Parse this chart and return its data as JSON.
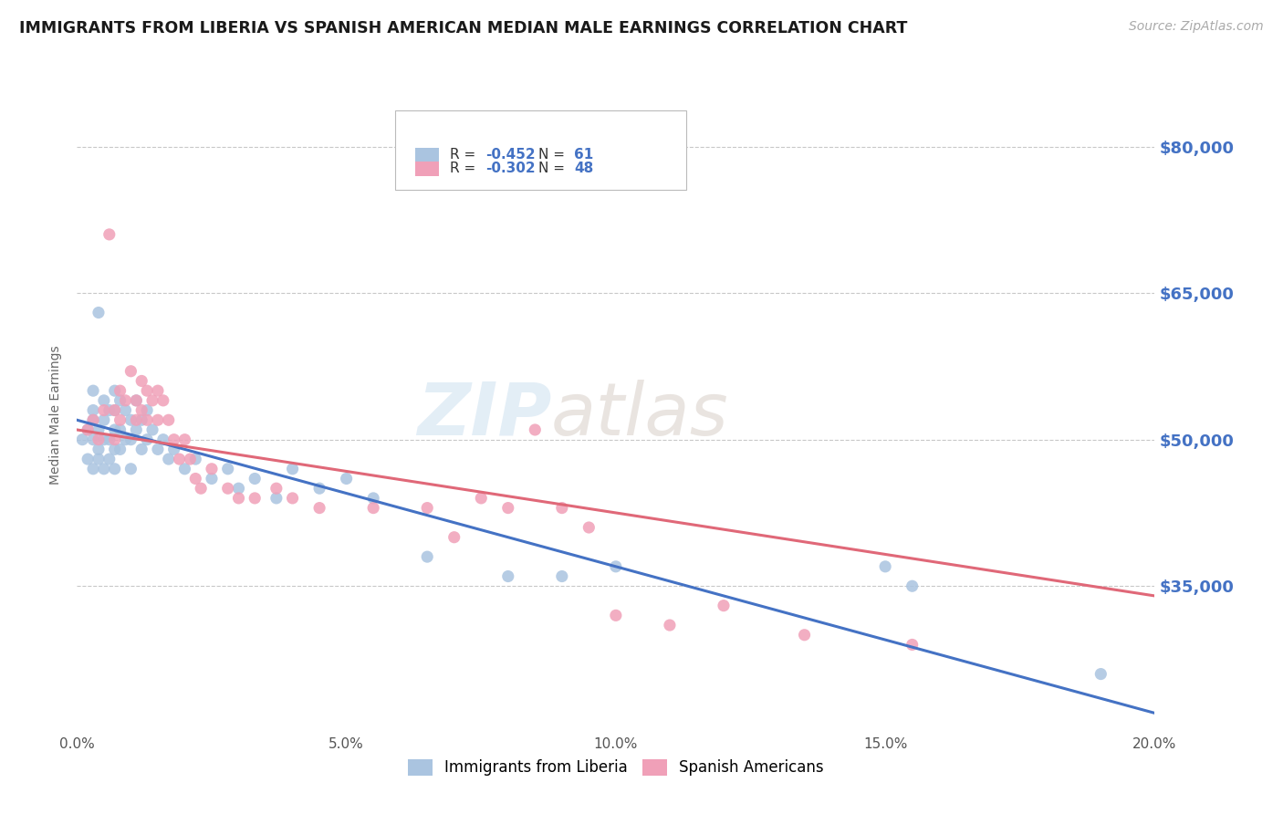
{
  "title": "IMMIGRANTS FROM LIBERIA VS SPANISH AMERICAN MEDIAN MALE EARNINGS CORRELATION CHART",
  "source": "Source: ZipAtlas.com",
  "ylabel_label": "Median Male Earnings",
  "x_min": 0.0,
  "x_max": 0.2,
  "y_min": 20000,
  "y_max": 85000,
  "yticks": [
    35000,
    50000,
    65000,
    80000
  ],
  "ytick_labels": [
    "$35,000",
    "$50,000",
    "$65,000",
    "$80,000"
  ],
  "xticks": [
    0.0,
    0.05,
    0.1,
    0.15,
    0.2
  ],
  "xtick_labels": [
    "0.0%",
    "5.0%",
    "10.0%",
    "15.0%",
    "20.0%"
  ],
  "blue_color": "#aac4e0",
  "pink_color": "#f0a0b8",
  "blue_line_color": "#4472c4",
  "pink_line_color": "#e06878",
  "axis_label_color": "#4472c4",
  "grid_color": "#c8c8c8",
  "background_color": "#ffffff",
  "legend_R1": "-0.452",
  "legend_N1": "61",
  "legend_R2": "-0.302",
  "legend_N2": "48",
  "legend_label1": "Immigrants from Liberia",
  "legend_label2": "Spanish Americans",
  "blue_scatter_x": [
    0.001,
    0.002,
    0.002,
    0.003,
    0.003,
    0.003,
    0.003,
    0.003,
    0.004,
    0.004,
    0.004,
    0.004,
    0.005,
    0.005,
    0.005,
    0.005,
    0.006,
    0.006,
    0.006,
    0.007,
    0.007,
    0.007,
    0.007,
    0.007,
    0.008,
    0.008,
    0.008,
    0.009,
    0.009,
    0.01,
    0.01,
    0.01,
    0.011,
    0.011,
    0.012,
    0.012,
    0.013,
    0.013,
    0.014,
    0.015,
    0.016,
    0.017,
    0.018,
    0.02,
    0.022,
    0.025,
    0.028,
    0.03,
    0.033,
    0.037,
    0.04,
    0.045,
    0.05,
    0.055,
    0.065,
    0.08,
    0.09,
    0.1,
    0.15,
    0.155,
    0.19
  ],
  "blue_scatter_y": [
    50000,
    51000,
    48000,
    52000,
    50000,
    47000,
    53000,
    55000,
    63000,
    49000,
    51000,
    48000,
    54000,
    50000,
    47000,
    52000,
    53000,
    50000,
    48000,
    55000,
    53000,
    51000,
    49000,
    47000,
    54000,
    51000,
    49000,
    53000,
    50000,
    52000,
    50000,
    47000,
    54000,
    51000,
    52000,
    49000,
    53000,
    50000,
    51000,
    49000,
    50000,
    48000,
    49000,
    47000,
    48000,
    46000,
    47000,
    45000,
    46000,
    44000,
    47000,
    45000,
    46000,
    44000,
    38000,
    36000,
    36000,
    37000,
    37000,
    35000,
    26000
  ],
  "pink_scatter_x": [
    0.002,
    0.003,
    0.004,
    0.005,
    0.006,
    0.007,
    0.007,
    0.008,
    0.008,
    0.009,
    0.01,
    0.011,
    0.011,
    0.012,
    0.012,
    0.013,
    0.013,
    0.014,
    0.015,
    0.015,
    0.016,
    0.017,
    0.018,
    0.019,
    0.02,
    0.021,
    0.022,
    0.023,
    0.025,
    0.028,
    0.03,
    0.033,
    0.037,
    0.04,
    0.045,
    0.055,
    0.065,
    0.07,
    0.075,
    0.08,
    0.085,
    0.09,
    0.095,
    0.1,
    0.11,
    0.12,
    0.135,
    0.155
  ],
  "pink_scatter_y": [
    51000,
    52000,
    50000,
    53000,
    71000,
    53000,
    50000,
    55000,
    52000,
    54000,
    57000,
    54000,
    52000,
    56000,
    53000,
    55000,
    52000,
    54000,
    55000,
    52000,
    54000,
    52000,
    50000,
    48000,
    50000,
    48000,
    46000,
    45000,
    47000,
    45000,
    44000,
    44000,
    45000,
    44000,
    43000,
    43000,
    43000,
    40000,
    44000,
    43000,
    51000,
    43000,
    41000,
    32000,
    31000,
    33000,
    30000,
    29000
  ],
  "blue_trend_x": [
    0.0,
    0.2
  ],
  "blue_trend_y": [
    52000,
    22000
  ],
  "pink_trend_x": [
    0.0,
    0.2
  ],
  "pink_trend_y": [
    51000,
    34000
  ]
}
